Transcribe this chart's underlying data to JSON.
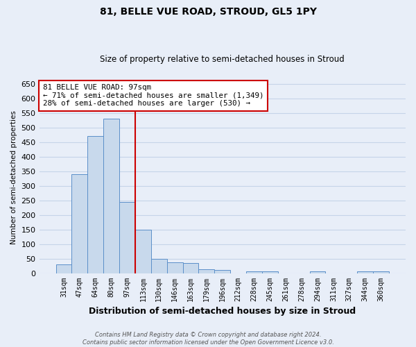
{
  "title": "81, BELLE VUE ROAD, STROUD, GL5 1PY",
  "subtitle": "Size of property relative to semi-detached houses in Stroud",
  "xlabel": "Distribution of semi-detached houses by size in Stroud",
  "ylabel": "Number of semi-detached properties",
  "footnote": "Contains HM Land Registry data © Crown copyright and database right 2024.\nContains public sector information licensed under the Open Government Licence v3.0.",
  "bins": [
    "31sqm",
    "47sqm",
    "64sqm",
    "80sqm",
    "97sqm",
    "113sqm",
    "130sqm",
    "146sqm",
    "163sqm",
    "179sqm",
    "196sqm",
    "212sqm",
    "228sqm",
    "245sqm",
    "261sqm",
    "278sqm",
    "294sqm",
    "311sqm",
    "327sqm",
    "344sqm",
    "360sqm"
  ],
  "values": [
    30,
    340,
    470,
    530,
    245,
    150,
    50,
    37,
    35,
    13,
    10,
    0,
    7,
    5,
    0,
    0,
    7,
    0,
    0,
    5,
    5
  ],
  "bar_color": "#c8d9ec",
  "bar_edge_color": "#5b8fc9",
  "vline_color": "#cc0000",
  "vline_index": 4,
  "annotation_text": "81 BELLE VUE ROAD: 97sqm\n← 71% of semi-detached houses are smaller (1,349)\n28% of semi-detached houses are larger (530) →",
  "annotation_box_color": "white",
  "annotation_box_edge": "#cc0000",
  "ylim": [
    0,
    660
  ],
  "yticks": [
    0,
    50,
    100,
    150,
    200,
    250,
    300,
    350,
    400,
    450,
    500,
    550,
    600,
    650
  ],
  "background_color": "#e8eef8",
  "grid_color": "#c5d4e8",
  "title_fontsize": 10,
  "subtitle_fontsize": 8.5
}
